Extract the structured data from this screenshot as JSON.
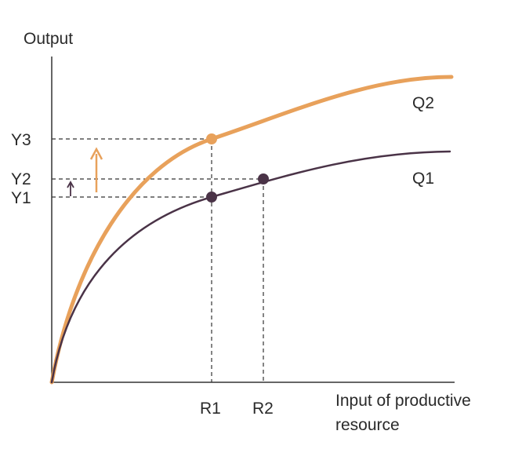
{
  "diagram": {
    "y_axis_label": "Output",
    "x_axis_label_line1": "Input of productive",
    "x_axis_label_line2": "resource",
    "curves": [
      {
        "name": "Q2",
        "color": "#e8a15b"
      },
      {
        "name": "Q1",
        "color": "#4a3347"
      }
    ],
    "y_levels": [
      "Y3",
      "Y2",
      "Y1"
    ],
    "x_levels": [
      "R1",
      "R2"
    ],
    "points": [
      {
        "curve": "Q2",
        "at": "R1",
        "level": "Y3",
        "color": "#e8a15b"
      },
      {
        "curve": "Q1",
        "at": "R1",
        "level": "Y1",
        "color": "#4a3347"
      },
      {
        "curve": "Q1",
        "at": "R2",
        "level": "Y2",
        "color": "#4a3347"
      }
    ],
    "arrows": [
      {
        "name": "increase-Y1-to-Y3",
        "color": "#e8a15b"
      },
      {
        "name": "increase-Y1-to-Y2",
        "color": "#4a3347"
      }
    ]
  }
}
